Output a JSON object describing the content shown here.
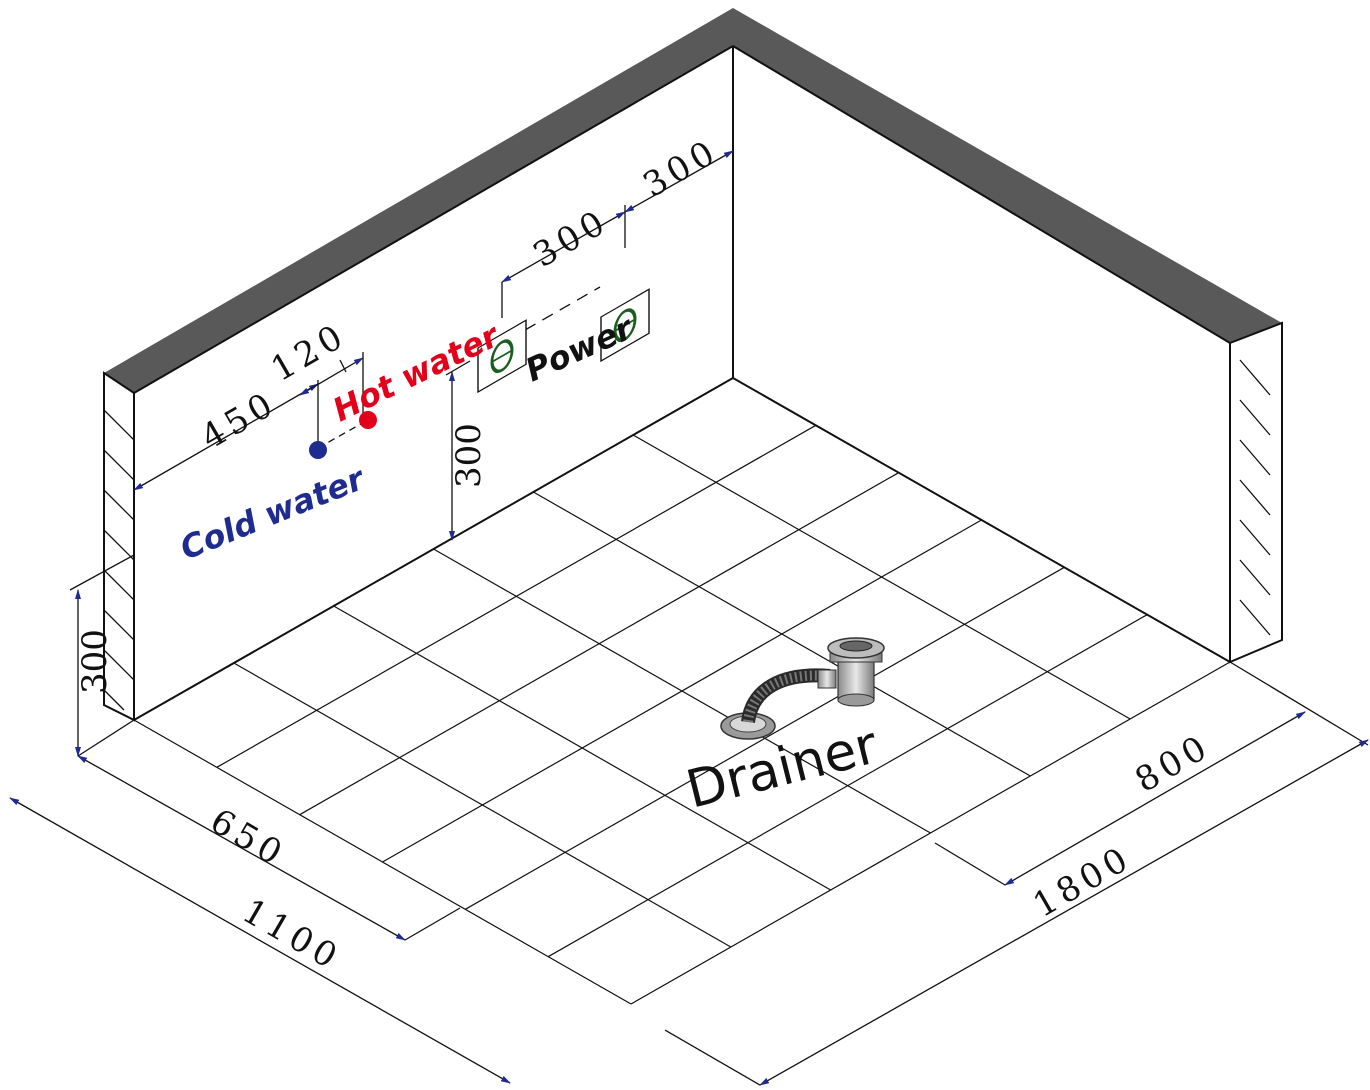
{
  "labels": {
    "cold_water": "Cold water",
    "hot_water": "Hot water",
    "power": "Power",
    "drainer": "Drainer"
  },
  "dimensions": {
    "d_450": "450",
    "d_120": "120",
    "d_300_power_left": "300",
    "d_300_power_right": "300",
    "d_300_wall_height": "300",
    "d_300_floor_height": "300",
    "d_650": "650",
    "d_1100": "1100",
    "d_800": "800",
    "d_1800": "1800"
  },
  "colors": {
    "cold_water": "#1f2c8f",
    "hot_water": "#e2001a",
    "power": "#111111",
    "wall_top": "#595959",
    "socket_symbol": "#1b5e20",
    "arrow": "#1f2c8f"
  },
  "icons": {
    "socket": "power-socket-icon",
    "drain": "floor-drain-icon"
  }
}
